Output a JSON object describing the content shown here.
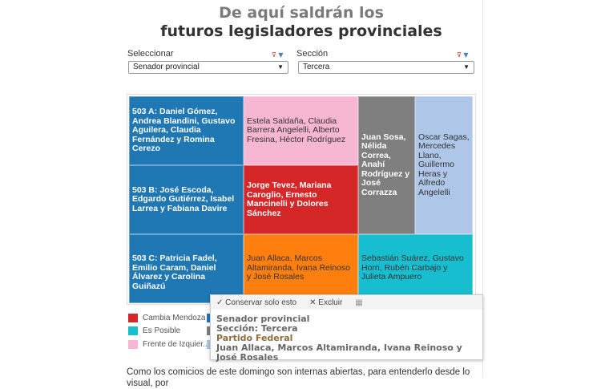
{
  "title": {
    "line1": "De aquí saldrán los",
    "line2": "futuros legisladores provinciales"
  },
  "filters": [
    {
      "label": "Seleccionar",
      "value": "Senador provincial"
    },
    {
      "label": "Sección",
      "value": "Tercera"
    }
  ],
  "treemap": {
    "cells": [
      {
        "text": "503 A:  Daniel Gómez, Andrea Blandini, Gustavo Aguilera, Claudia Fernández y Romina Cerezo",
        "color": "#1f77b4"
      },
      {
        "text": "Estela Saldaña, Claudia Barrera Angelelli, Alberto Fresina, Héctor Rodríguez",
        "color": "#f7b6d2"
      },
      {
        "text": "Juan Sosa, Nélida Correa, Anahí Rodríguez y José Corrazza",
        "color": "#7f7f7f"
      },
      {
        "text": "Oscar Sagas, Mercedes Llano, Guillermo Heras y Alfredo Angelelli",
        "color": "#aec7e8"
      },
      {
        "text": "503 B: José Escoda, Edgardo Gutiérrez, Isabel Larrea y Fabiana Davire",
        "color": "#1f77b4"
      },
      {
        "text": "Jorge Tevez, Mariana Caroglio, Ernesto Mancinelli y Dolores Sánchez",
        "color": "#d62728"
      },
      {
        "text": "503 C: Patricia Fadel, Emilio Caram, Daniel Álvarez y Carolina Guiñazú",
        "color": "#1f77b4"
      },
      {
        "text": "Juan Allaca, Marcos Altamiranda, Ivana Reinoso y José Rosales",
        "color": "#ff7f0e"
      },
      {
        "text": "Sebastián Suárez, Gustavo Horn, Rubén Carbajo y Julieta Ampuero",
        "color": "#17becf"
      }
    ]
  },
  "legend": [
    {
      "label": "Cambia Mendoza",
      "color": "#d62728"
    },
    {
      "label": "Es Posible",
      "color": "#17becf"
    },
    {
      "label": "Frente de Izquier...",
      "color": "#f7b6d2"
    }
  ],
  "tooltip": {
    "keep": "Conservar solo esto",
    "exclude": "Excluir",
    "line1": "Senador provincial",
    "line2": "Sección: Tercera",
    "party": "Partido Federal",
    "names": "Juan Allaca, Marcos Altamiranda, Ivana Reinoso y José Rosales"
  },
  "body_text": "Como los comicios de este domingo son internas abiertas, para entenderlo desde lo visual, por"
}
